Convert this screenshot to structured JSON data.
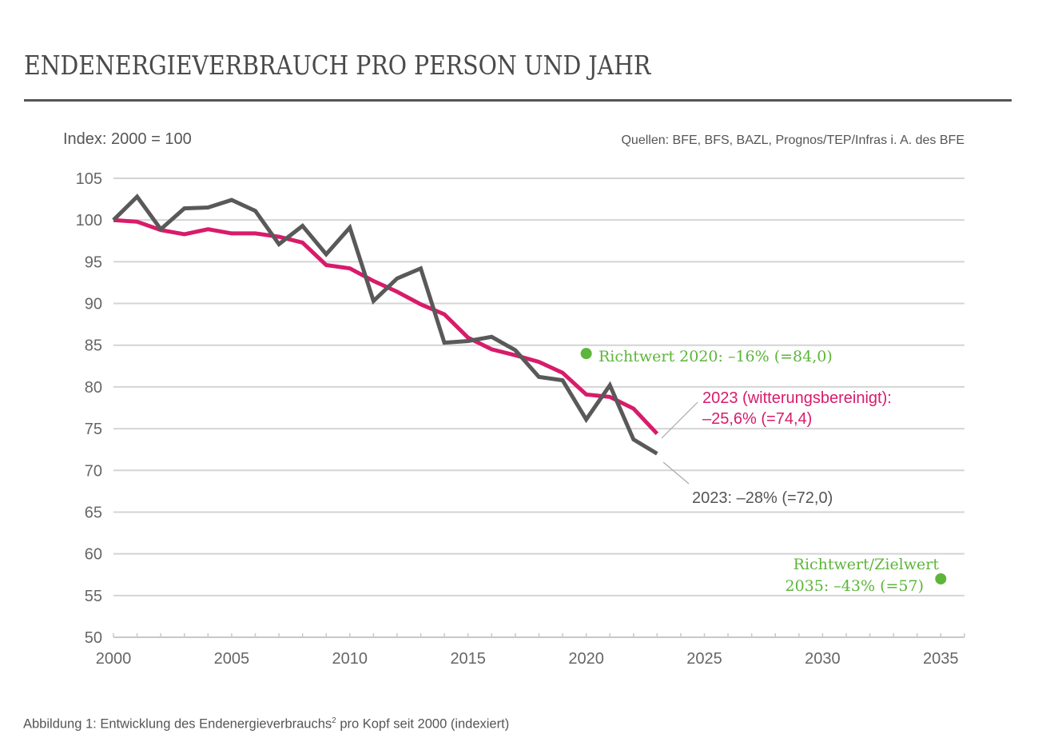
{
  "header": {
    "title": "ENDENERGIEVERBRAUCH PRO PERSON UND JAHR",
    "index_label": "Index: 2000 = 100",
    "source": "Quellen: BFE, BFS, BAZL, Prognos/TEP/Infras i. A. des BFE"
  },
  "caption": {
    "text_before": "Abbildung 1: Entwicklung des Endenergieverbrauchs",
    "superscript": "2",
    "text_after": " pro Kopf seit 2000 (indexiert)"
  },
  "colors": {
    "gray_series": "#595959",
    "pink_series": "#d81b6a",
    "target_green": "#5db53a",
    "grid": "#d4d4d4",
    "text": "#555555"
  },
  "chart_data": {
    "type": "line",
    "title": "ENDENERGIEVERBRAUCH PRO PERSON UND JAHR",
    "xlabel": "",
    "ylabel": "Index: 2000 = 100",
    "xlim": [
      2000,
      2035
    ],
    "ylim": [
      50,
      105
    ],
    "x_ticks": [
      2000,
      2005,
      2010,
      2015,
      2020,
      2025,
      2030,
      2035
    ],
    "y_ticks": [
      50,
      55,
      60,
      65,
      70,
      75,
      80,
      85,
      90,
      95,
      100,
      105
    ],
    "grid": true,
    "x": [
      2000,
      2001,
      2002,
      2003,
      2004,
      2005,
      2006,
      2007,
      2008,
      2009,
      2010,
      2011,
      2012,
      2013,
      2014,
      2015,
      2016,
      2017,
      2018,
      2019,
      2020,
      2021,
      2022,
      2023
    ],
    "series": [
      {
        "name": "Endenergieverbrauch pro Person",
        "color": "#595959",
        "values": [
          100.0,
          102.8,
          98.9,
          101.4,
          101.5,
          102.4,
          101.1,
          97.1,
          99.3,
          95.9,
          99.1,
          90.3,
          93.0,
          94.2,
          85.3,
          85.5,
          86.0,
          84.4,
          81.2,
          80.8,
          76.1,
          80.2,
          73.7,
          72.0
        ]
      },
      {
        "name": "Endenergieverbrauch pro Person (witterungsbereinigt)",
        "color": "#d81b6a",
        "values": [
          100.0,
          99.8,
          98.8,
          98.3,
          98.9,
          98.4,
          98.4,
          98.0,
          97.3,
          94.6,
          94.2,
          92.7,
          91.4,
          89.9,
          88.7,
          85.9,
          84.5,
          83.8,
          83.0,
          81.7,
          79.1,
          78.8,
          77.4,
          74.4
        ]
      }
    ],
    "targets": [
      {
        "name": "Richtwert 2020",
        "x": 2020,
        "y": 84.0,
        "color": "#5db53a"
      },
      {
        "name": "Richtwert/Zielwert 2035",
        "x": 2035,
        "y": 57,
        "color": "#5db53a"
      }
    ],
    "annotations": [
      {
        "id": "target2020",
        "lines": [
          "Richtwert 2020: –16% (=84,0)"
        ],
        "color": "#5db53a"
      },
      {
        "id": "pink2023",
        "lines": [
          "2023 (witterungsbereinigt):",
          "–25,6% (=74,4)"
        ],
        "color": "#d81b6a"
      },
      {
        "id": "gray2023",
        "lines": [
          "2023: –28% (=72,0)"
        ],
        "color": "#555555"
      },
      {
        "id": "target2035",
        "lines": [
          "Richtwert/Zielwert",
          "2035: –43% (=57)"
        ],
        "color": "#5db53a"
      }
    ]
  }
}
